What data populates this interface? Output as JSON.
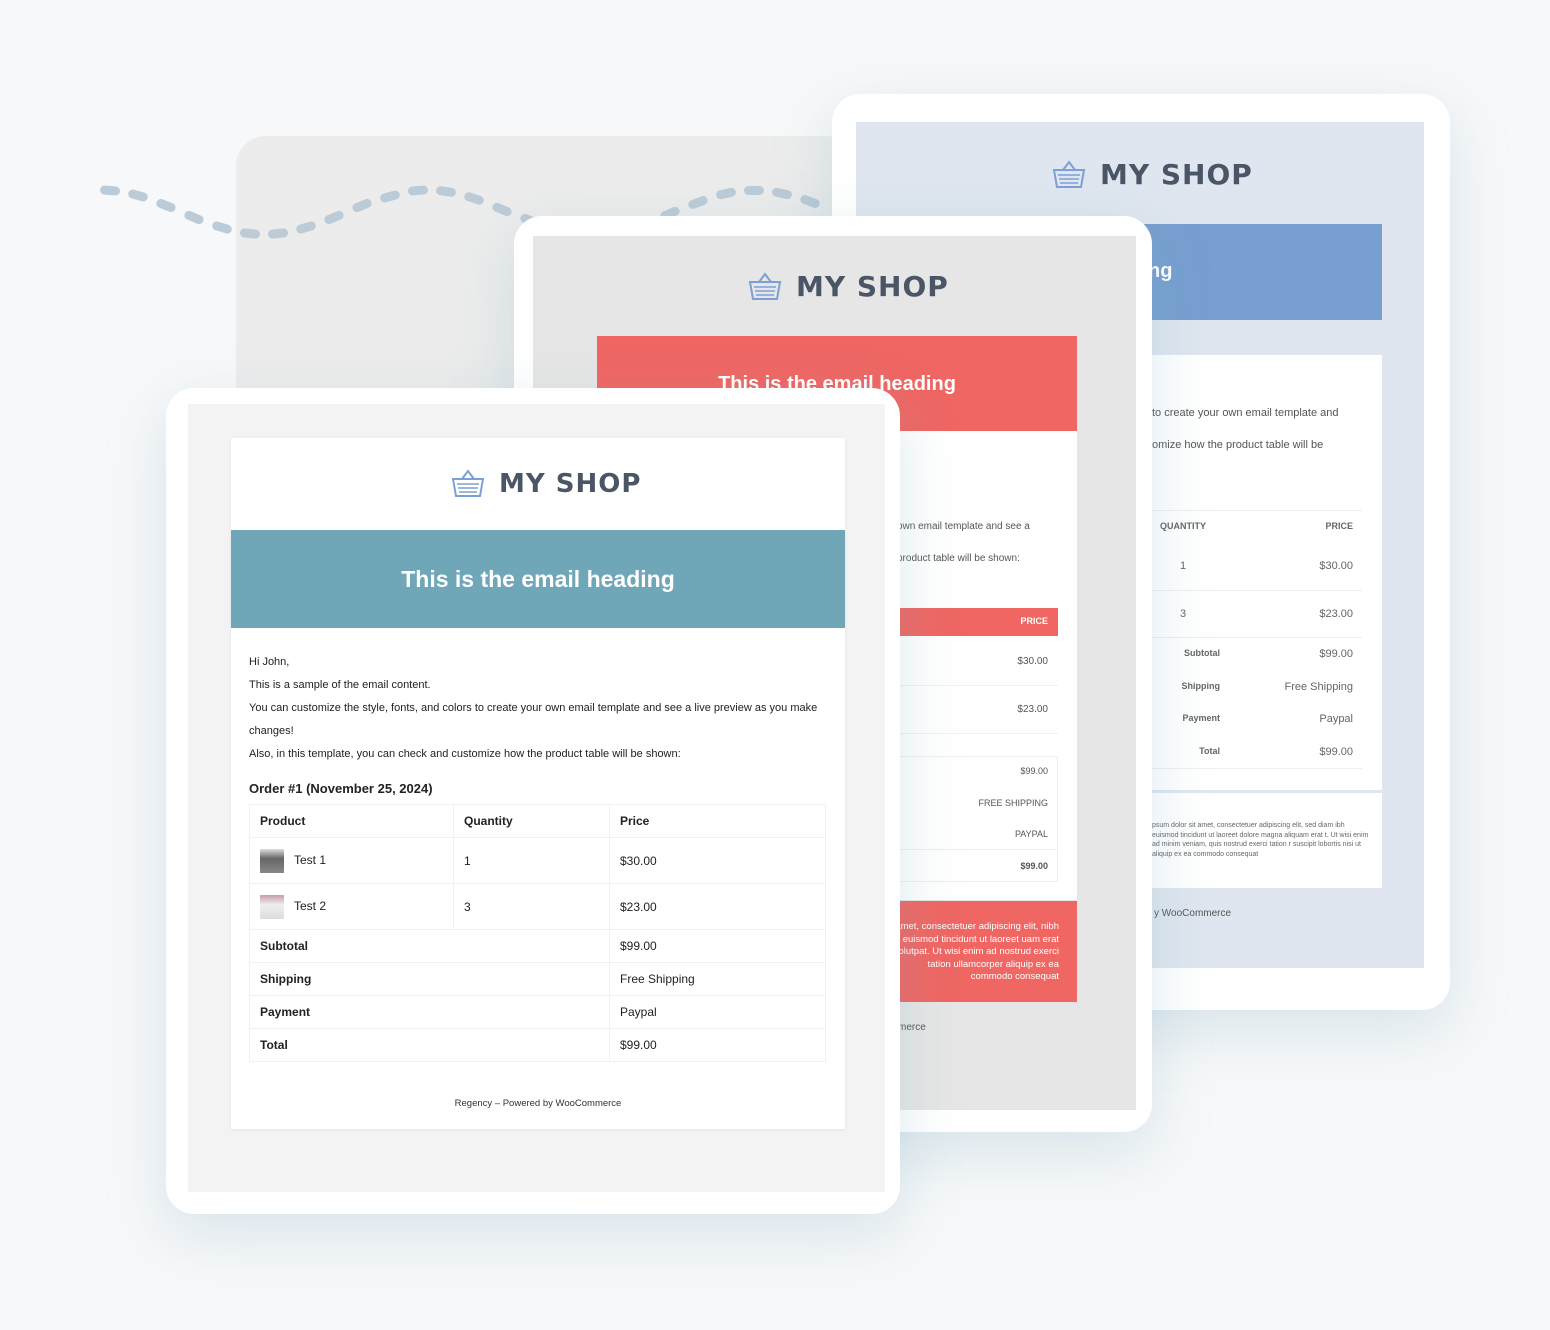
{
  "shop_name": "MY SHOP",
  "heading": "This is the email heading",
  "colors": {
    "teal": "#6fa6b8",
    "red": "#ef6663",
    "blue": "#779fd0",
    "title": "#4a5566"
  },
  "front": {
    "greeting": "Hi John,",
    "line1": "This is a sample of the email content.",
    "line2": "You can customize the style, fonts, and colors to create your own email template and see a live preview as you make changes!",
    "line3": "Also, in this template, you can check and customize how the product table will be shown:",
    "order_title": "Order #1 (November 25, 2024)",
    "headers": [
      "Product",
      "Quantity",
      "Price"
    ],
    "items": [
      {
        "name": "Test 1",
        "qty": "1",
        "price": "$30.00"
      },
      {
        "name": "Test 2",
        "qty": "3",
        "price": "$23.00"
      }
    ],
    "totals": [
      {
        "label": "Subtotal",
        "value": "$99.00"
      },
      {
        "label": "Shipping",
        "value": "Free Shipping"
      },
      {
        "label": "Payment",
        "value": "Paypal"
      },
      {
        "label": "Total",
        "value": "$99.00"
      }
    ],
    "footer": "Regency – Powered by WooCommerce"
  },
  "middle": {
    "line1": "own email template and see a",
    "line2": "product table will be shown:",
    "price_header": "PRICE",
    "prices": [
      "$30.00",
      "$23.00"
    ],
    "totals": [
      "$99.00",
      "FREE SHIPPING",
      "PAYPAL",
      "$99.00"
    ],
    "lorem": "amet, consectetuer adipiscing elit, nibh euismod tincidunt ut laoreet uam erat volutpat. Ut wisi enim ad nostrud exerci tation ullamcorper aliquip ex ea commodo consequat",
    "footer": "merce"
  },
  "back": {
    "heading_fragment": "ng",
    "line1": "to create your own email template and",
    "line2": "omize how the product table will be",
    "headers": [
      "QUANTITY",
      "PRICE"
    ],
    "rows": [
      [
        "1",
        "$30.00"
      ],
      [
        "3",
        "$23.00"
      ]
    ],
    "totals": [
      {
        "label": "Subtotal",
        "value": "$99.00"
      },
      {
        "label": "Shipping",
        "value": "Free Shipping"
      },
      {
        "label": "Payment",
        "value": "Paypal"
      },
      {
        "label": "Total",
        "value": "$99.00"
      }
    ],
    "lorem": "psum dolor sit amet, consectetuer adipiscing elit, sed diam ibh euismod tincidunt ut laoreet dolore magna aliquam erat t. Ut wisi enim ad minim veniam, quis nostrud exerci tation r suscipit lobortis nisi ut aliquip ex ea commodo consequat",
    "footer": "y WooCommerce"
  }
}
